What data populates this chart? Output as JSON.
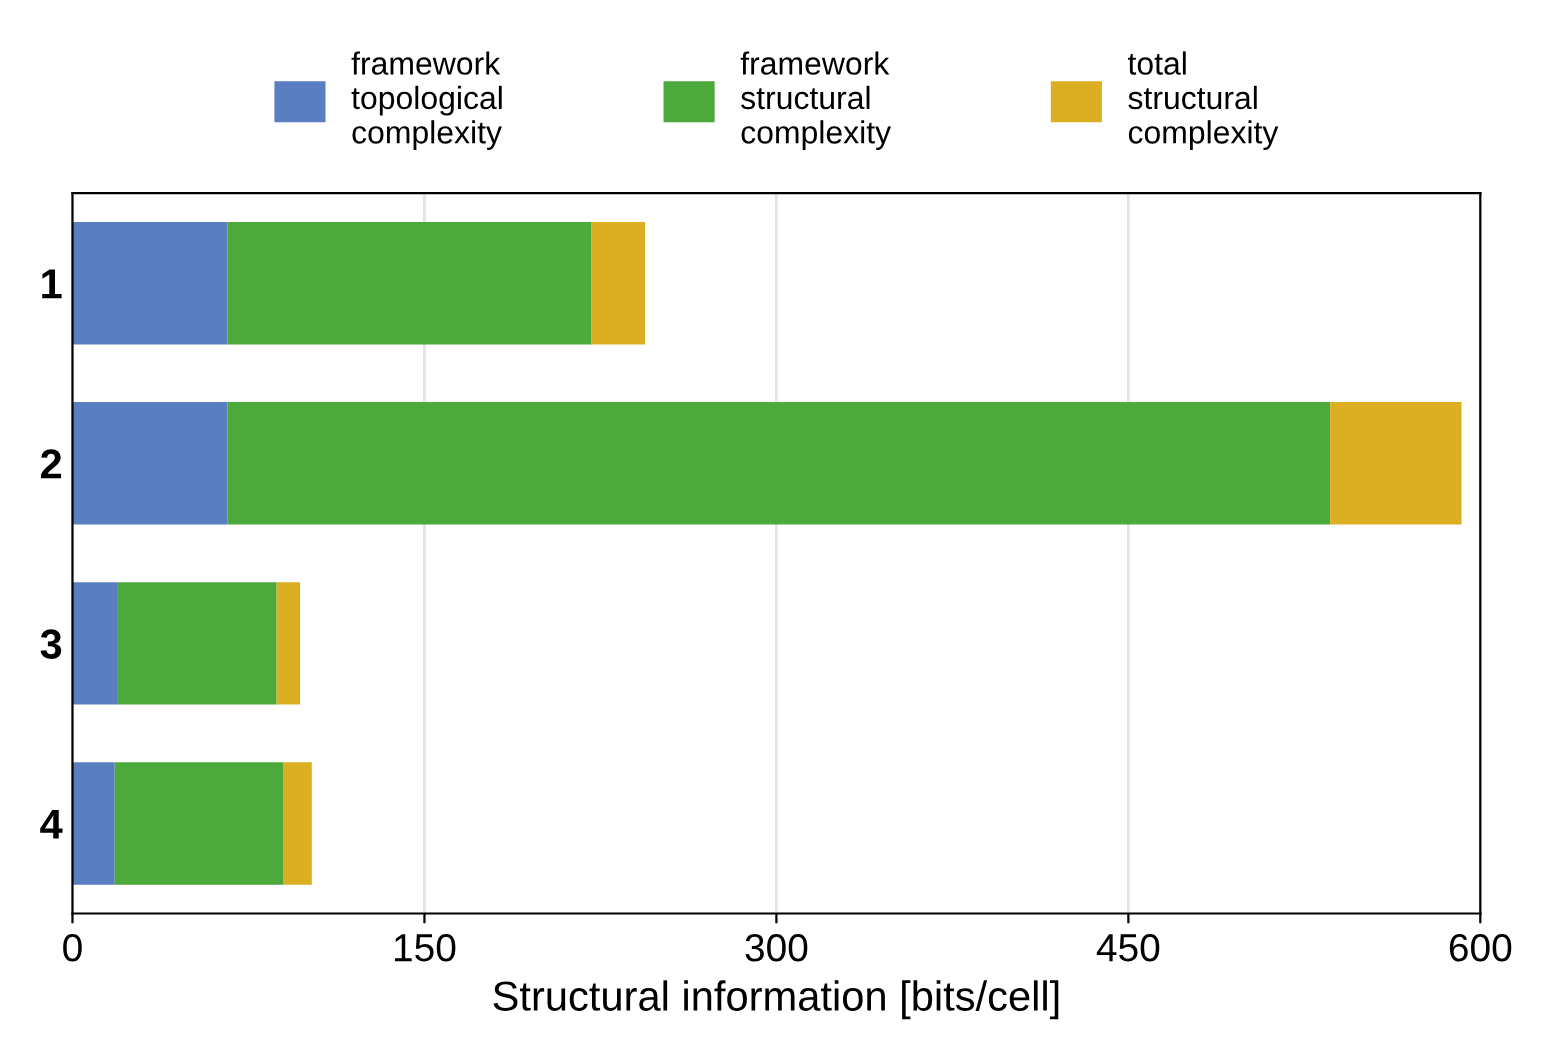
{
  "chart_data": {
    "type": "bar",
    "orientation": "horizontal",
    "stacked": true,
    "xlabel": "Structural information [bits/cell]",
    "categories": [
      "1",
      "2",
      "3",
      "4"
    ],
    "series": [
      {
        "name": "framework\ntopological\ncomplexity",
        "color": "#5a7ec2",
        "values": [
          66,
          66,
          19,
          18
        ]
      },
      {
        "name": "framework\nstructural\ncomplexity",
        "color": "#4ca93c",
        "values": [
          155,
          470,
          68,
          72
        ]
      },
      {
        "name": "total\nstructural\ncomplexity",
        "color": "#dcae22",
        "values": [
          23,
          56,
          10,
          12
        ]
      }
    ],
    "xlim": [
      0,
      600
    ],
    "xticks": [
      0,
      150,
      300,
      450,
      600
    ],
    "grid": "x",
    "legend": "top"
  }
}
